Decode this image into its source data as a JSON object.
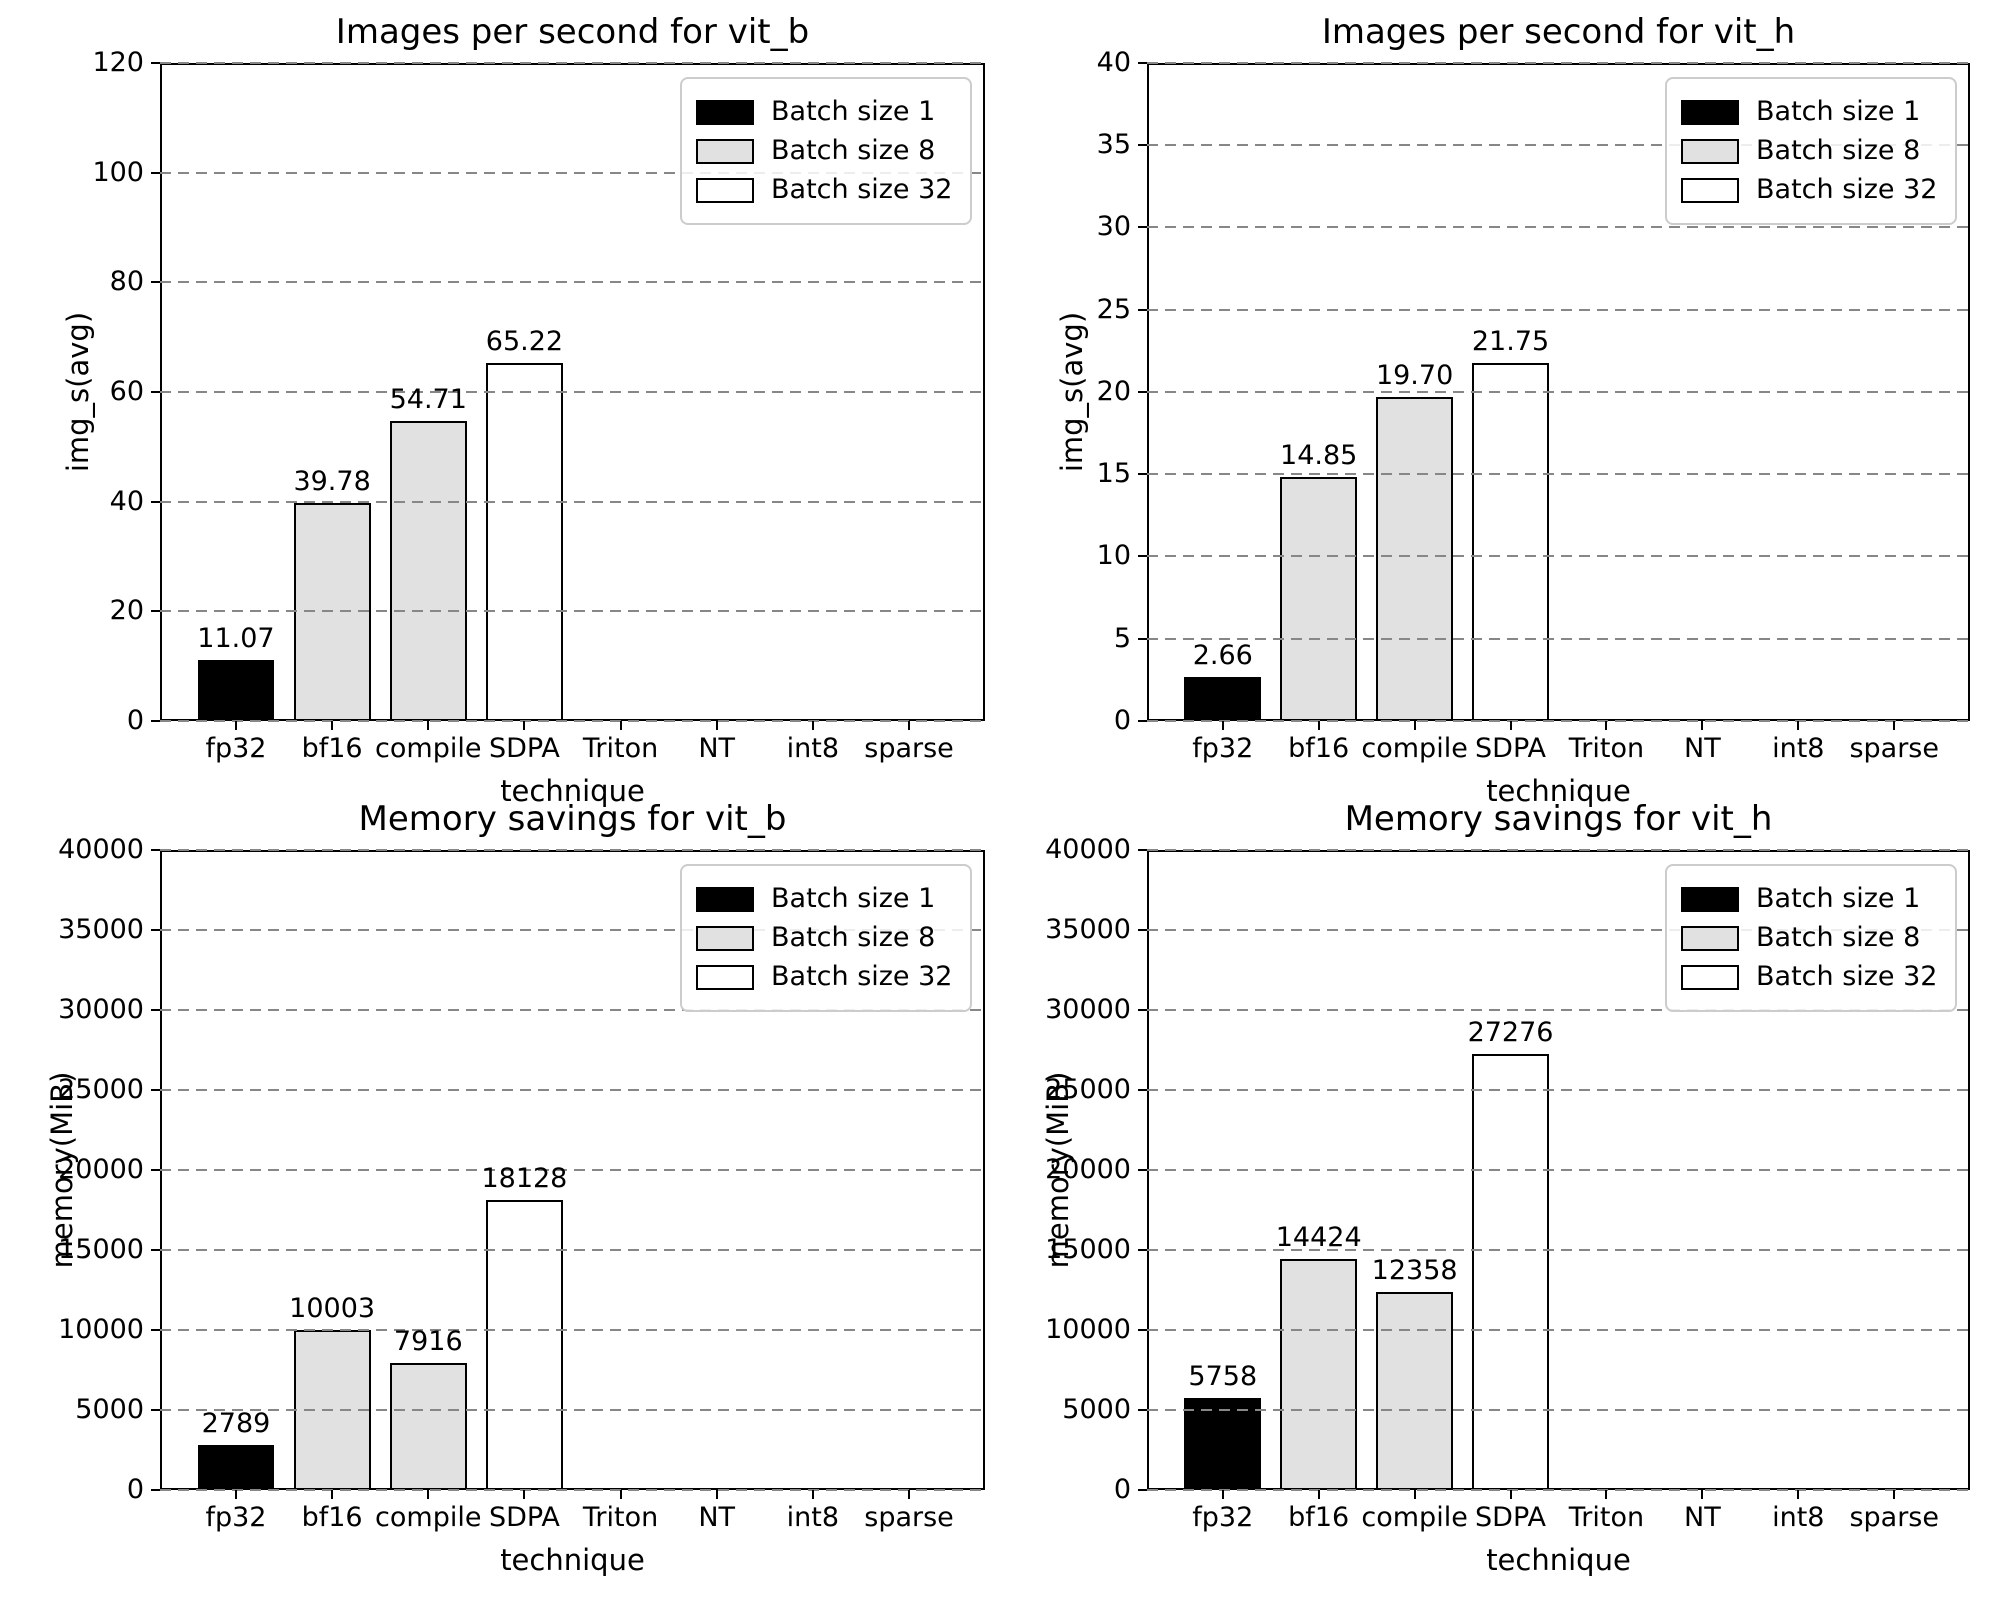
{
  "legend": {
    "position": "upper right",
    "entries": [
      {
        "label": "Batch size 1",
        "fill": "#000000",
        "edge": "#000000"
      },
      {
        "label": "Batch size 8",
        "fill": "#e1e1e1",
        "edge": "#000000"
      },
      {
        "label": "Batch size 32",
        "fill": "#ffffff",
        "edge": "#000000"
      }
    ]
  },
  "colors": {
    "background": "#ffffff",
    "spine": "#000000",
    "grid": "#878787",
    "text": "#000000"
  },
  "chart_data": [
    {
      "type": "bar",
      "title": "Images per second for vit_b",
      "xlabel": "technique",
      "ylabel": "img_s(avg)",
      "categories": [
        "fp32",
        "bf16",
        "compile",
        "SDPA",
        "Triton",
        "NT",
        "int8",
        "sparse"
      ],
      "bars": [
        {
          "category": "fp32",
          "category_index": 0,
          "series": "Batch size 1",
          "value": 11.07,
          "value_label": "11.07",
          "fill": "#000000"
        },
        {
          "category": "bf16",
          "category_index": 1,
          "series": "Batch size 8",
          "value": 39.78,
          "value_label": "39.78",
          "fill": "#e1e1e1"
        },
        {
          "category": "compile",
          "category_index": 2,
          "series": "Batch size 8",
          "value": 54.71,
          "value_label": "54.71",
          "fill": "#e1e1e1"
        },
        {
          "category": "SDPA",
          "category_index": 3,
          "series": "Batch size 32",
          "value": 65.22,
          "value_label": "65.22",
          "fill": "#ffffff"
        }
      ],
      "ylim": [
        0,
        120
      ],
      "yticks": [
        0,
        20,
        40,
        60,
        80,
        100,
        120
      ],
      "ytick_labels": [
        "0",
        "20",
        "40",
        "60",
        "80",
        "100",
        "120"
      ],
      "grid": "horizontal-dashed",
      "legend_position": "upper right"
    },
    {
      "type": "bar",
      "title": "Images per second for vit_h",
      "xlabel": "technique",
      "ylabel": "img_s(avg)",
      "categories": [
        "fp32",
        "bf16",
        "compile",
        "SDPA",
        "Triton",
        "NT",
        "int8",
        "sparse"
      ],
      "bars": [
        {
          "category": "fp32",
          "category_index": 0,
          "series": "Batch size 1",
          "value": 2.66,
          "value_label": "2.66",
          "fill": "#000000"
        },
        {
          "category": "bf16",
          "category_index": 1,
          "series": "Batch size 8",
          "value": 14.85,
          "value_label": "14.85",
          "fill": "#e1e1e1"
        },
        {
          "category": "compile",
          "category_index": 2,
          "series": "Batch size 8",
          "value": 19.7,
          "value_label": "19.70",
          "fill": "#e1e1e1"
        },
        {
          "category": "SDPA",
          "category_index": 3,
          "series": "Batch size 32",
          "value": 21.75,
          "value_label": "21.75",
          "fill": "#ffffff"
        }
      ],
      "ylim": [
        0,
        40
      ],
      "yticks": [
        0,
        5,
        10,
        15,
        20,
        25,
        30,
        35,
        40
      ],
      "ytick_labels": [
        "0",
        "5",
        "10",
        "15",
        "20",
        "25",
        "30",
        "35",
        "40"
      ],
      "grid": "horizontal-dashed",
      "legend_position": "upper right"
    },
    {
      "type": "bar",
      "title": "Memory savings for vit_b",
      "xlabel": "technique",
      "ylabel": "memory(MiB)",
      "categories": [
        "fp32",
        "bf16",
        "compile",
        "SDPA",
        "Triton",
        "NT",
        "int8",
        "sparse"
      ],
      "bars": [
        {
          "category": "fp32",
          "category_index": 0,
          "series": "Batch size 1",
          "value": 2789,
          "value_label": "2789",
          "fill": "#000000"
        },
        {
          "category": "bf16",
          "category_index": 1,
          "series": "Batch size 8",
          "value": 10003,
          "value_label": "10003",
          "fill": "#e1e1e1"
        },
        {
          "category": "compile",
          "category_index": 2,
          "series": "Batch size 8",
          "value": 7916,
          "value_label": "7916",
          "fill": "#e1e1e1"
        },
        {
          "category": "SDPA",
          "category_index": 3,
          "series": "Batch size 32",
          "value": 18128,
          "value_label": "18128",
          "fill": "#ffffff"
        }
      ],
      "ylim": [
        0,
        40000
      ],
      "yticks": [
        0,
        5000,
        10000,
        15000,
        20000,
        25000,
        30000,
        35000,
        40000
      ],
      "ytick_labels": [
        "0",
        "5000",
        "10000",
        "15000",
        "20000",
        "25000",
        "30000",
        "35000",
        "40000"
      ],
      "grid": "horizontal-dashed",
      "legend_position": "upper right"
    },
    {
      "type": "bar",
      "title": "Memory savings for vit_h",
      "xlabel": "technique",
      "ylabel": "memory(MiB)",
      "categories": [
        "fp32",
        "bf16",
        "compile",
        "SDPA",
        "Triton",
        "NT",
        "int8",
        "sparse"
      ],
      "bars": [
        {
          "category": "fp32",
          "category_index": 0,
          "series": "Batch size 1",
          "value": 5758,
          "value_label": "5758",
          "fill": "#000000"
        },
        {
          "category": "bf16",
          "category_index": 1,
          "series": "Batch size 8",
          "value": 14424,
          "value_label": "14424",
          "fill": "#e1e1e1"
        },
        {
          "category": "compile",
          "category_index": 2,
          "series": "Batch size 8",
          "value": 12358,
          "value_label": "12358",
          "fill": "#e1e1e1"
        },
        {
          "category": "SDPA",
          "category_index": 3,
          "series": "Batch size 32",
          "value": 27276,
          "value_label": "27276",
          "fill": "#ffffff"
        }
      ],
      "ylim": [
        0,
        40000
      ],
      "yticks": [
        0,
        5000,
        10000,
        15000,
        20000,
        25000,
        30000,
        35000,
        40000
      ],
      "ytick_labels": [
        "0",
        "5000",
        "10000",
        "15000",
        "20000",
        "25000",
        "30000",
        "35000",
        "40000"
      ],
      "grid": "horizontal-dashed",
      "legend_position": "upper right"
    }
  ]
}
